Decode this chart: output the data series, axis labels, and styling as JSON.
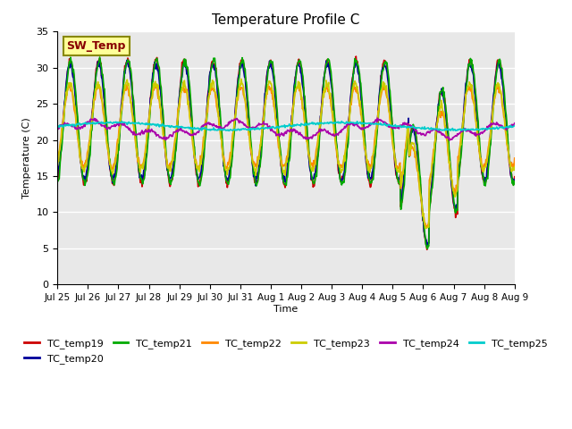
{
  "title": "Temperature Profile C",
  "xlabel": "Time",
  "ylabel": "Temperature (C)",
  "ylim": [
    0,
    35
  ],
  "yticks": [
    0,
    5,
    10,
    15,
    20,
    25,
    30,
    35
  ],
  "x_labels": [
    "Jul 25",
    "Jul 26",
    "Jul 27",
    "Jul 28",
    "Jul 29",
    "Jul 30",
    "Jul 31",
    "Aug 1",
    "Aug 2",
    "Aug 3",
    "Aug 4",
    "Aug 5",
    "Aug 6",
    "Aug 7",
    "Aug 8",
    "Aug 9"
  ],
  "series_colors": {
    "TC_temp19": "#cc0000",
    "TC_temp20": "#000099",
    "TC_temp21": "#00aa00",
    "TC_temp22": "#ff8800",
    "TC_temp23": "#cccc00",
    "TC_temp24": "#aa00aa",
    "TC_temp25": "#00cccc"
  },
  "sw_temp_box_color": "#ffff99",
  "sw_temp_box_edge": "#888800",
  "sw_temp_text_color": "#880000",
  "background_plot": "#e8e8e8",
  "background_fig": "#ffffff",
  "grid_color": "#ffffff",
  "legend_entries": [
    "TC_temp19",
    "TC_temp20",
    "TC_temp21",
    "TC_temp22",
    "TC_temp23",
    "TC_temp24",
    "TC_temp25"
  ]
}
